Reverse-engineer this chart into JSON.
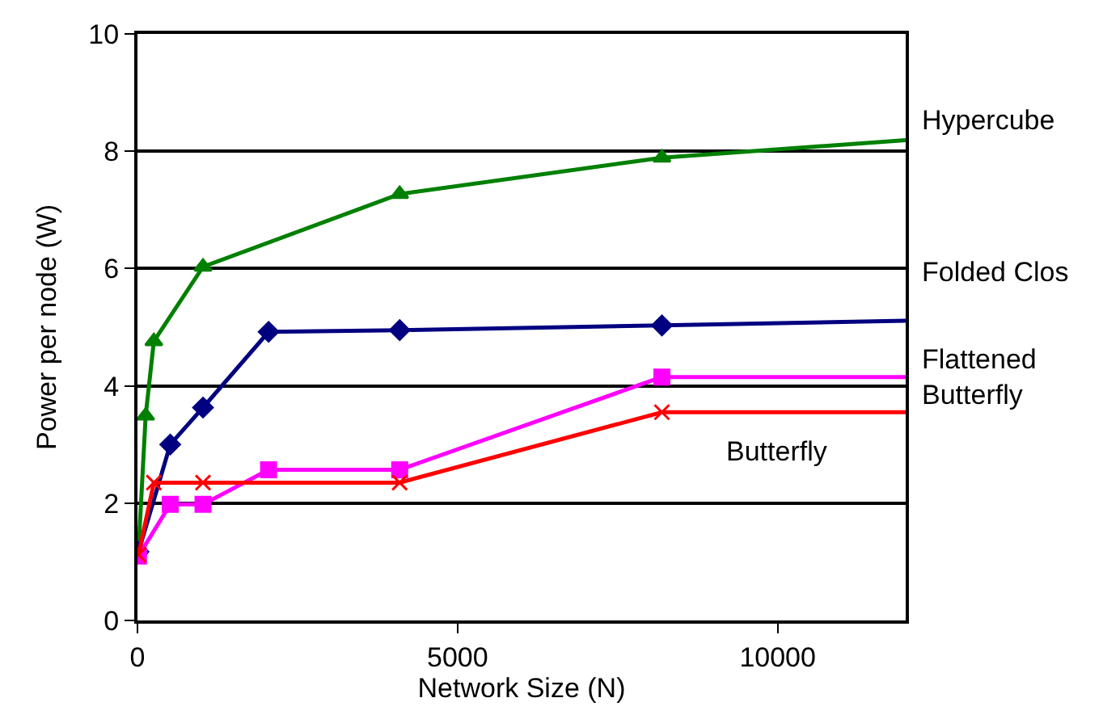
{
  "chart_data": {
    "type": "line",
    "xlabel": "Network Size (N)",
    "ylabel": "Power per node (W)",
    "xlim": [
      0,
      12000
    ],
    "xticks": [
      0,
      5000,
      10000
    ],
    "ylim": [
      0,
      10
    ],
    "yticks": [
      0,
      2,
      4,
      6,
      8,
      10
    ],
    "grid": "y",
    "legend": false,
    "series": [
      {
        "name": "Hypercube",
        "color": "#008000",
        "marker": "triangle",
        "x": [
          16,
          128,
          256,
          1024,
          4096,
          8192
        ],
        "values": [
          1.19,
          3.49,
          4.76,
          6.03,
          7.27,
          7.89
        ]
      },
      {
        "color": "#008000",
        "marker": "none",
        "x": [
          8192,
          12000
        ],
        "values": [
          7.89,
          8.19
        ]
      },
      {
        "name": "Folded Clos",
        "color": "#000080",
        "marker": "diamond",
        "x": [
          16,
          512,
          1024,
          2048,
          4096,
          8192
        ],
        "values": [
          1.17,
          3.0,
          3.63,
          4.92,
          4.95,
          5.03
        ]
      },
      {
        "color": "#000080",
        "marker": "none",
        "x": [
          8192,
          12000
        ],
        "values": [
          5.03,
          5.11
        ]
      },
      {
        "name": "Flattened\nButterfly",
        "color": "#ff00ff",
        "marker": "square",
        "x": [
          16,
          512,
          1024,
          2048,
          4096,
          8192
        ],
        "values": [
          1.1,
          1.98,
          1.98,
          2.57,
          2.57,
          4.15
        ]
      },
      {
        "color": "#ff00ff",
        "marker": "none",
        "x": [
          8192,
          12000
        ],
        "values": [
          4.15,
          4.15
        ]
      },
      {
        "name": "Butterfly",
        "color": "#ff0000",
        "marker": "cross",
        "x": [
          16,
          256,
          1024,
          4096,
          8192
        ],
        "values": [
          1.12,
          2.35,
          2.35,
          2.35,
          3.55
        ]
      },
      {
        "color": "#ff0000",
        "marker": "none",
        "x": [
          8192,
          12000
        ],
        "values": [
          3.55,
          3.55
        ]
      }
    ]
  }
}
